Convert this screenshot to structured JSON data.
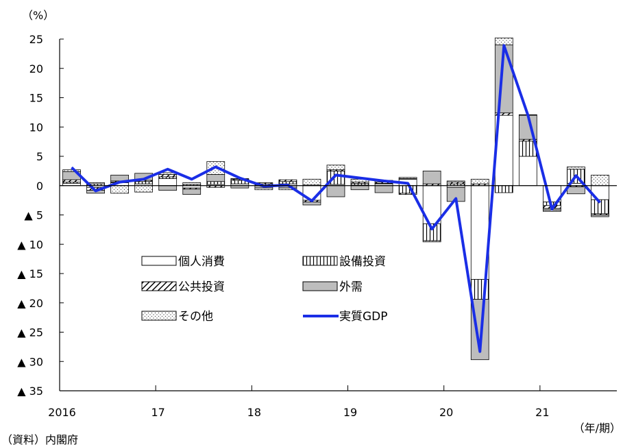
{
  "chart_data": {
    "type": "bar",
    "stacked": true,
    "unit_label": "（%）",
    "xlabel": "（年/期）",
    "ylim": [
      -35,
      25
    ],
    "yticks": [
      {
        "value": 25,
        "label": "25"
      },
      {
        "value": 20,
        "label": "20"
      },
      {
        "value": 15,
        "label": "15"
      },
      {
        "value": 10,
        "label": "10"
      },
      {
        "value": 5,
        "label": "5"
      },
      {
        "value": 0,
        "label": "0"
      },
      {
        "value": -5,
        "label": "▲ 5"
      },
      {
        "value": -10,
        "label": "▲ 10"
      },
      {
        "value": -15,
        "label": "▲ 15"
      },
      {
        "value": -20,
        "label": "▲ 20"
      },
      {
        "value": -25,
        "label": "▲ 25"
      },
      {
        "value": -30,
        "label": "▲ 30"
      },
      {
        "value": -35,
        "label": "▲ 35"
      }
    ],
    "x_labels": [
      {
        "index": 0,
        "label": "2016"
      },
      {
        "index": 4,
        "label": "17"
      },
      {
        "index": 8,
        "label": "18"
      },
      {
        "index": 12,
        "label": "19"
      },
      {
        "index": 16,
        "label": "20"
      },
      {
        "index": 20,
        "label": "21"
      }
    ],
    "n_periods": 23,
    "series": [
      {
        "name": "個人消費",
        "pattern": "white",
        "values": [
          0.4,
          -0.3,
          0.5,
          0.3,
          1.2,
          -0.4,
          0.2,
          0.3,
          0.1,
          0.3,
          -2.5,
          0.2,
          0.1,
          0.3,
          1.1,
          -6.5,
          -0.3,
          -16.0,
          12.0,
          5.0,
          -2.8,
          0.4,
          -2.4
        ]
      },
      {
        "name": "設備投資",
        "pattern": "vertical",
        "values": [
          0.2,
          0.3,
          0.1,
          0.4,
          0.3,
          0.2,
          0.5,
          0.6,
          0.2,
          0.4,
          0.1,
          2.3,
          0.3,
          0.1,
          -1.3,
          -2.9,
          0.3,
          -3.4,
          -1.2,
          2.6,
          -0.6,
          2.4,
          -2.4
        ]
      },
      {
        "name": "公共投資",
        "pattern": "diagonal",
        "values": [
          0.4,
          -0.5,
          0.2,
          0.2,
          0.4,
          -0.2,
          -0.3,
          0.2,
          0.2,
          0.3,
          -0.3,
          0.2,
          0.2,
          0.2,
          -0.2,
          0.3,
          0.3,
          0.3,
          0.4,
          0.3,
          -0.5,
          -0.2,
          -0.2
        ]
      },
      {
        "name": "外需",
        "pattern": "gray",
        "values": [
          1.4,
          -0.5,
          1.0,
          1.2,
          -0.8,
          -0.9,
          1.2,
          -0.4,
          -0.4,
          -0.4,
          -0.5,
          -1.9,
          -0.7,
          -1.2,
          0.1,
          2.2,
          -2.4,
          -10.3,
          11.6,
          4.1,
          -0.3,
          -1.2,
          -0.3
        ]
      },
      {
        "name": "その他",
        "pattern": "dotted",
        "values": [
          0.3,
          0.2,
          -1.3,
          -1.1,
          0.3,
          0.3,
          2.2,
          0.1,
          -0.3,
          -0.3,
          1.0,
          0.8,
          0.5,
          0.3,
          0.2,
          -0.2,
          0.2,
          0.8,
          1.2,
          0.1,
          -0.2,
          0.4,
          1.8
        ]
      }
    ],
    "line_series": {
      "name": "実質GDP",
      "color": "#1a2ee6",
      "values": [
        3.1,
        -0.9,
        0.6,
        1.1,
        2.8,
        1.1,
        3.2,
        1.3,
        -0.1,
        0.1,
        -2.6,
        1.8,
        1.3,
        0.8,
        0.4,
        -7.4,
        -2.2,
        -28.3,
        23.9,
        12.0,
        -4.0,
        1.7,
        -2.9
      ]
    },
    "legend_placement": "center-left",
    "grid": false
  },
  "source_note": "（資料）内閣府"
}
